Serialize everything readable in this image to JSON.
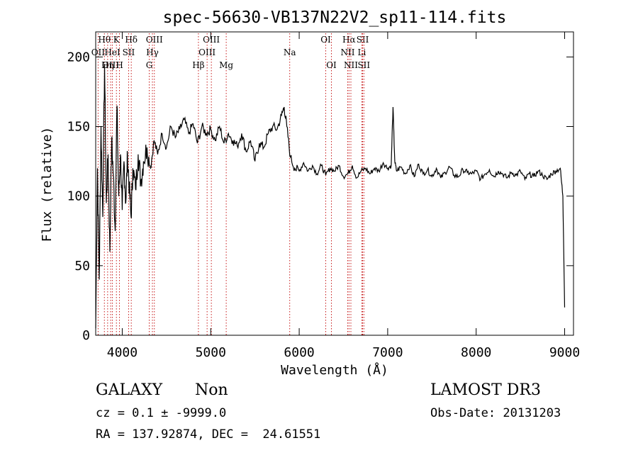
{
  "chart_data": {
    "type": "line",
    "title": "spec-56630-VB137N22V2_sp11-114.fits",
    "xlabel": "Wavelength (Å)",
    "ylabel": "Flux (relative)",
    "xlim": [
      3700,
      9100
    ],
    "ylim": [
      0,
      218
    ],
    "xticks": [
      4000,
      5000,
      6000,
      7000,
      8000,
      9000
    ],
    "yticks": [
      0,
      50,
      100,
      150,
      200
    ],
    "series": [
      {
        "name": "flux",
        "x": [
          3700,
          3720,
          3740,
          3760,
          3780,
          3800,
          3820,
          3840,
          3860,
          3880,
          3900,
          3920,
          3940,
          3960,
          3980,
          4000,
          4020,
          4040,
          4060,
          4080,
          4100,
          4120,
          4150,
          4180,
          4210,
          4240,
          4280,
          4320,
          4360,
          4400,
          4450,
          4500,
          4550,
          4600,
          4650,
          4700,
          4750,
          4800,
          4850,
          4900,
          4950,
          5000,
          5050,
          5100,
          5150,
          5200,
          5250,
          5300,
          5350,
          5400,
          5450,
          5500,
          5550,
          5600,
          5650,
          5700,
          5750,
          5800,
          5830,
          5860,
          5900,
          5950,
          6000,
          6050,
          6100,
          6150,
          6200,
          6250,
          6300,
          6350,
          6400,
          6450,
          6500,
          6550,
          6600,
          6650,
          6700,
          6750,
          6800,
          6850,
          6900,
          6950,
          7000,
          7040,
          7060,
          7080,
          7100,
          7150,
          7200,
          7250,
          7300,
          7350,
          7400,
          7450,
          7500,
          7550,
          7600,
          7650,
          7700,
          7750,
          7800,
          7850,
          7900,
          7950,
          8000,
          8050,
          8100,
          8150,
          8200,
          8250,
          8300,
          8350,
          8400,
          8450,
          8500,
          8550,
          8600,
          8650,
          8700,
          8750,
          8800,
          8850,
          8900,
          8950,
          8980,
          9000
        ],
        "values": [
          5,
          120,
          40,
          150,
          85,
          195,
          95,
          130,
          60,
          140,
          115,
          75,
          165,
          100,
          130,
          90,
          125,
          95,
          130,
          105,
          85,
          120,
          105,
          130,
          110,
          125,
          135,
          120,
          140,
          130,
          145,
          135,
          150,
          142,
          148,
          155,
          145,
          152,
          138,
          150,
          145,
          148,
          140,
          150,
          138,
          145,
          140,
          136,
          145,
          132,
          140,
          125,
          138,
          135,
          145,
          150,
          148,
          158,
          164,
          150,
          128,
          120,
          118,
          124,
          118,
          122,
          116,
          122,
          115,
          120,
          118,
          122,
          114,
          116,
          122,
          113,
          118,
          120,
          116,
          120,
          118,
          124,
          120,
          122,
          164,
          125,
          118,
          121,
          116,
          122,
          114,
          123,
          116,
          119,
          114,
          120,
          113,
          117,
          121,
          115,
          114,
          119,
          117,
          116,
          118,
          112,
          116,
          119,
          114,
          118,
          116,
          113,
          117,
          115,
          118,
          112,
          116,
          114,
          118,
          115,
          112,
          116,
          118,
          120,
          100,
          20
        ]
      }
    ],
    "emission_lines": [
      {
        "label": "Hθ",
        "x": 3798,
        "row": 1
      },
      {
        "label": "OII",
        "x": 3727,
        "row": 2
      },
      {
        "label": "OIII",
        "x": 3869,
        "row": 3
      },
      {
        "label": "K",
        "x": 3934,
        "row": 1
      },
      {
        "label": "HeI",
        "x": 3889,
        "row": 2
      },
      {
        "label": "Hη",
        "x": 3835,
        "row": 3
      },
      {
        "label": "H",
        "x": 3969,
        "row": 3
      },
      {
        "label": "Hδ",
        "x": 4102,
        "row": 1
      },
      {
        "label": "SII",
        "x": 4072,
        "row": 2
      },
      {
        "label": "OIII",
        "x": 4363,
        "row": 1
      },
      {
        "label": "Hγ",
        "x": 4341,
        "row": 2
      },
      {
        "label": "G",
        "x": 4305,
        "row": 3
      },
      {
        "label": "OIII",
        "x": 5007,
        "row": 1
      },
      {
        "label": "OIII",
        "x": 4959,
        "row": 2
      },
      {
        "label": "Hβ",
        "x": 4861,
        "row": 3
      },
      {
        "label": "Mg",
        "x": 5175,
        "row": 3
      },
      {
        "label": "Na",
        "x": 5893,
        "row": 2
      },
      {
        "label": "OI",
        "x": 6300,
        "row": 1
      },
      {
        "label": "OI",
        "x": 6364,
        "row": 3
      },
      {
        "label": "Hα",
        "x": 6563,
        "row": 1
      },
      {
        "label": "NII",
        "x": 6548,
        "row": 2
      },
      {
        "label": "NII",
        "x": 6584,
        "row": 3
      },
      {
        "label": "SII",
        "x": 6717,
        "row": 1
      },
      {
        "label": "Li",
        "x": 6708,
        "row": 2
      },
      {
        "label": "SII",
        "x": 6731,
        "row": 3
      }
    ]
  },
  "info": {
    "class": "GALAXY",
    "subclass": "Non",
    "survey": "LAMOST DR3",
    "cz": "cz = 0.1 ± -9999.0",
    "obs_date": "Obs-Date: 20131203",
    "coords": "RA = 137.92874, DEC =  24.61551"
  }
}
